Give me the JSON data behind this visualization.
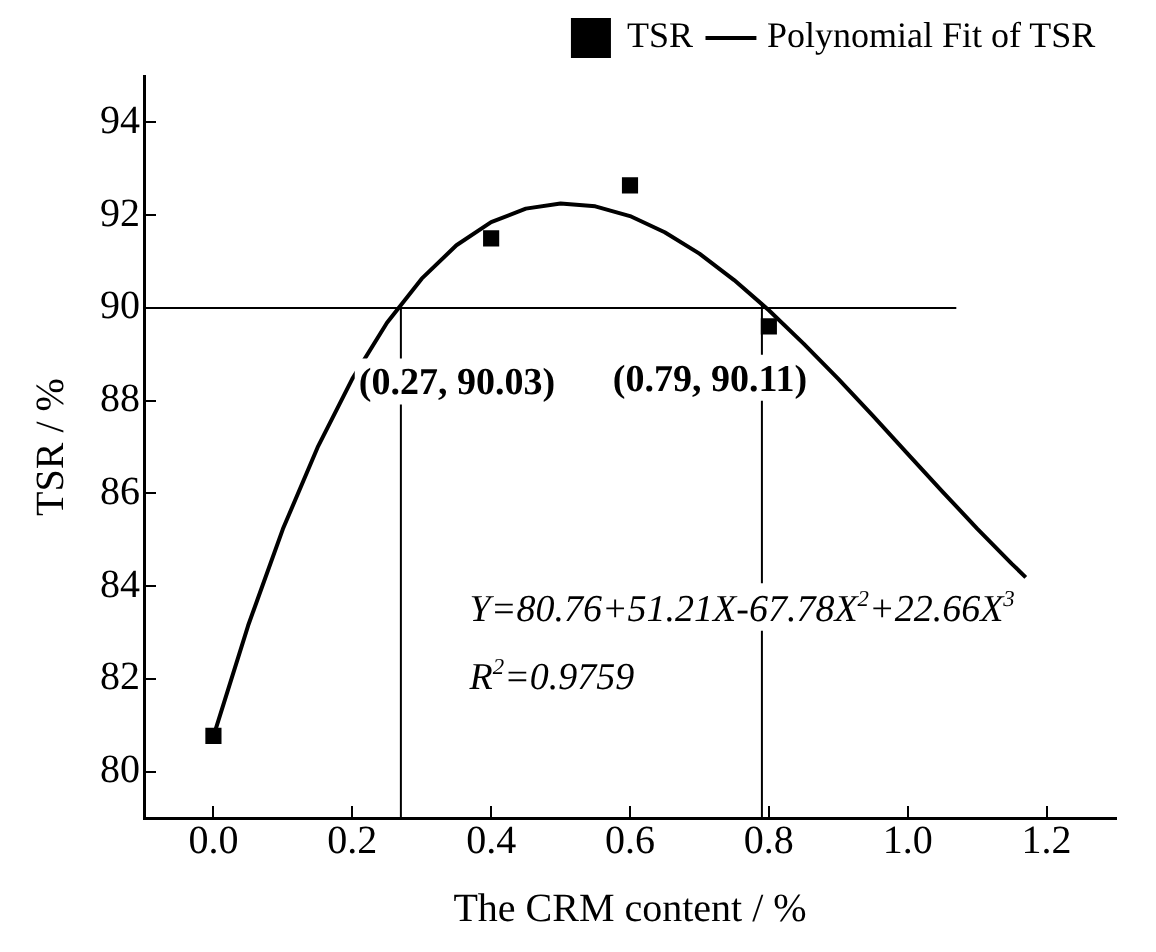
{
  "chart_data": {
    "type": "scatter",
    "xlabel": "The CRM content / %",
    "ylabel": "TSR / %",
    "xlim": [
      -0.1,
      1.3
    ],
    "xticks": [
      {
        "value": 0,
        "label": "0.0"
      },
      0.2,
      0.4,
      0.6,
      0.8,
      {
        "value": 1,
        "label": "1.0"
      },
      1.2
    ],
    "ylim": [
      79,
      95
    ],
    "yticks": [
      80,
      82,
      84,
      86,
      88,
      90,
      92,
      94
    ],
    "grid": false,
    "legend": "top right",
    "series": [
      {
        "name": "TSR",
        "marker": "square",
        "color": "#000000",
        "x": [
          0.0,
          0.4,
          0.6,
          0.8
        ],
        "values": [
          80.77,
          91.5,
          92.64,
          89.6
        ]
      },
      {
        "name": "Polynomial Fit of TSR",
        "type": "line",
        "marker": "none",
        "color": "#000000",
        "x": [
          0,
          0.05,
          0.1,
          0.15,
          0.2,
          0.25,
          0.3,
          0.35,
          0.4,
          0.45,
          0.5,
          0.55,
          0.6,
          0.65,
          0.7,
          0.75,
          0.8,
          0.85,
          0.9,
          0.95,
          1.0,
          1.05,
          1.1,
          1.15,
          1.17
        ],
        "values": [
          80.76,
          83.15,
          85.23,
          86.99,
          88.47,
          89.68,
          90.63,
          91.35,
          91.85,
          92.14,
          92.25,
          92.19,
          91.98,
          91.63,
          91.17,
          90.6,
          89.95,
          89.23,
          88.47,
          87.67,
          86.85,
          86.04,
          85.24,
          84.48,
          84.19
        ]
      },
      {
        "type": "line",
        "marker": "none",
        "color": "#000000",
        "x": [
          -0.1,
          1.07
        ],
        "values": [
          90,
          90
        ]
      },
      {
        "type": "line",
        "marker": "none",
        "color": "#000000",
        "x": [
          0.27,
          0.27
        ],
        "values": [
          79,
          90.03
        ]
      },
      {
        "type": "line",
        "marker": "none",
        "color": "#000000",
        "x": [
          0.79,
          0.79
        ],
        "values": [
          79,
          90.11
        ]
      }
    ],
    "annotations": [
      {
        "text": "(0.27, 90.03)",
        "x": 0.27,
        "y": 90.03
      },
      {
        "text": "(0.79, 90.11)",
        "x": 0.79,
        "y": 90.11
      },
      "Y=80.76+51.21X-67.78X$^{2}$+22.66X$^{3}$",
      "R$^{2}$=0.9759"
    ]
  }
}
